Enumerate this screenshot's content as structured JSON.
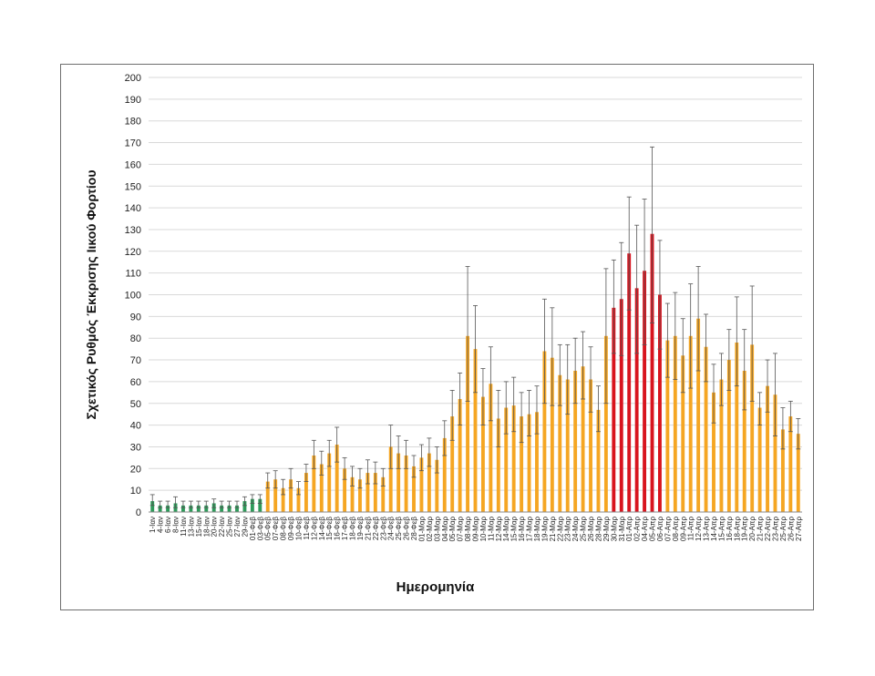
{
  "chart_data": {
    "type": "bar",
    "title": "",
    "xlabel": "Ημερομηνία",
    "ylabel": "Σχετικός Ρυθμός Έκκρισης Ιικού Φορτίου",
    "ylim": [
      0,
      200
    ],
    "yticks": [
      0,
      10,
      20,
      30,
      40,
      50,
      60,
      70,
      80,
      90,
      100,
      110,
      120,
      130,
      140,
      150,
      160,
      170,
      180,
      190,
      200
    ],
    "grid": true,
    "colors": {
      "green": "#2e9a5a",
      "orange": "#f5a623",
      "red": "#d8141e",
      "errorbar": "#555555",
      "grid": "#d9d9d9"
    },
    "x_tick_labels": [
      "1-Ιαν",
      "4-Ιαν",
      "6-Ιαν",
      "8-Ιαν",
      "11-Ιαν",
      "13-Ιαν",
      "15-Ιαν",
      "18-Ιαν",
      "20-Ιαν",
      "22-Ιαν",
      "25-Ιαν",
      "27-Ιαν",
      "29-Ιαν",
      "01-Φεβ",
      "03-Φεβ",
      "05-Φεβ",
      "07-Φεβ",
      "08-Φεβ",
      "09-Φεβ",
      "10-Φεβ",
      "11-Φεβ",
      "12-Φεβ",
      "14-Φεβ",
      "15-Φεβ",
      "16-Φεβ",
      "17-Φεβ",
      "18-Φεβ",
      "19-Φεβ",
      "21-Φεβ",
      "22-Φεβ",
      "23-Φεβ",
      "24-Φεβ",
      "25-Φεβ",
      "26-Φεβ",
      "28-Φεβ",
      "01-Μαρ",
      "02-Μαρ",
      "03-Μαρ",
      "04-Μαρ",
      "05-Μαρ",
      "07-Μαρ",
      "08-Μαρ",
      "09-Μαρ",
      "10-Μαρ",
      "11-Μαρ",
      "12-Μαρ",
      "14-Μαρ",
      "15-Μαρ",
      "16-Μαρ",
      "17-Μαρ",
      "18-Μαρ",
      "19-Μαρ",
      "21-Μαρ",
      "22-Μαρ",
      "23-Μαρ",
      "24-Μαρ",
      "25-Μαρ",
      "26-Μαρ",
      "28-Μαρ",
      "29-Μαρ",
      "30-Μαρ",
      "31-Μαρ",
      "01-Απρ",
      "02-Απρ",
      "04-Απρ",
      "05-Απρ",
      "06-Απρ",
      "07-Απρ",
      "08-Απρ",
      "09-Απρ",
      "11-Απρ",
      "12-Απρ",
      "13-Απρ",
      "14-Απρ",
      "15-Απρ",
      "16-Απρ",
      "18-Απρ",
      "19-Απρ",
      "20-Απρ",
      "21-Απρ",
      "22-Απρ",
      "23-Απρ",
      "25-Απρ",
      "26-Απρ",
      "27-Απρ"
    ],
    "bars": [
      {
        "v": 5,
        "lo": 3,
        "hi": 8,
        "c": "green"
      },
      {
        "v": 3,
        "lo": 2,
        "hi": 5,
        "c": "green"
      },
      {
        "v": 3,
        "lo": 2,
        "hi": 5,
        "c": "green"
      },
      {
        "v": 4,
        "lo": 2,
        "hi": 7,
        "c": "green"
      },
      {
        "v": 3,
        "lo": 2,
        "hi": 5,
        "c": "green"
      },
      {
        "v": 3,
        "lo": 2,
        "hi": 5,
        "c": "green"
      },
      {
        "v": 3,
        "lo": 2,
        "hi": 5,
        "c": "green"
      },
      {
        "v": 3,
        "lo": 2,
        "hi": 5,
        "c": "green"
      },
      {
        "v": 4,
        "lo": 2,
        "hi": 6,
        "c": "green"
      },
      {
        "v": 3,
        "lo": 2,
        "hi": 5,
        "c": "green"
      },
      {
        "v": 3,
        "lo": 2,
        "hi": 5,
        "c": "green"
      },
      {
        "v": 3,
        "lo": 2,
        "hi": 5,
        "c": "green"
      },
      {
        "v": 5,
        "lo": 3,
        "hi": 7,
        "c": "green"
      },
      {
        "v": 6,
        "lo": 4,
        "hi": 8,
        "c": "green"
      },
      {
        "v": 6,
        "lo": 4,
        "hi": 8,
        "c": "green"
      },
      {
        "v": 14,
        "lo": 11,
        "hi": 18,
        "c": "orange"
      },
      {
        "v": 15,
        "lo": 11,
        "hi": 19,
        "c": "orange"
      },
      {
        "v": 11,
        "lo": 8,
        "hi": 15,
        "c": "orange"
      },
      {
        "v": 15,
        "lo": 11,
        "hi": 20,
        "c": "orange"
      },
      {
        "v": 11,
        "lo": 8,
        "hi": 14,
        "c": "orange"
      },
      {
        "v": 18,
        "lo": 14,
        "hi": 22,
        "c": "orange"
      },
      {
        "v": 26,
        "lo": 20,
        "hi": 33,
        "c": "orange"
      },
      {
        "v": 22,
        "lo": 17,
        "hi": 28,
        "c": "orange"
      },
      {
        "v": 27,
        "lo": 21,
        "hi": 33,
        "c": "orange"
      },
      {
        "v": 31,
        "lo": 23,
        "hi": 39,
        "c": "orange"
      },
      {
        "v": 20,
        "lo": 15,
        "hi": 25,
        "c": "orange"
      },
      {
        "v": 16,
        "lo": 12,
        "hi": 21,
        "c": "orange"
      },
      {
        "v": 15,
        "lo": 11,
        "hi": 20,
        "c": "orange"
      },
      {
        "v": 18,
        "lo": 13,
        "hi": 24,
        "c": "orange"
      },
      {
        "v": 18,
        "lo": 13,
        "hi": 23,
        "c": "orange"
      },
      {
        "v": 16,
        "lo": 12,
        "hi": 20,
        "c": "orange"
      },
      {
        "v": 30,
        "lo": 20,
        "hi": 40,
        "c": "orange"
      },
      {
        "v": 27,
        "lo": 20,
        "hi": 35,
        "c": "orange"
      },
      {
        "v": 26,
        "lo": 20,
        "hi": 33,
        "c": "orange"
      },
      {
        "v": 21,
        "lo": 16,
        "hi": 26,
        "c": "orange"
      },
      {
        "v": 25,
        "lo": 19,
        "hi": 31,
        "c": "orange"
      },
      {
        "v": 27,
        "lo": 21,
        "hi": 34,
        "c": "orange"
      },
      {
        "v": 24,
        "lo": 18,
        "hi": 30,
        "c": "orange"
      },
      {
        "v": 34,
        "lo": 26,
        "hi": 42,
        "c": "orange"
      },
      {
        "v": 44,
        "lo": 33,
        "hi": 56,
        "c": "orange"
      },
      {
        "v": 52,
        "lo": 40,
        "hi": 64,
        "c": "orange"
      },
      {
        "v": 81,
        "lo": 51,
        "hi": 113,
        "c": "orange"
      },
      {
        "v": 75,
        "lo": 55,
        "hi": 95,
        "c": "orange"
      },
      {
        "v": 53,
        "lo": 40,
        "hi": 66,
        "c": "orange"
      },
      {
        "v": 59,
        "lo": 42,
        "hi": 76,
        "c": "orange"
      },
      {
        "v": 43,
        "lo": 30,
        "hi": 56,
        "c": "orange"
      },
      {
        "v": 48,
        "lo": 36,
        "hi": 60,
        "c": "orange"
      },
      {
        "v": 49,
        "lo": 37,
        "hi": 62,
        "c": "orange"
      },
      {
        "v": 44,
        "lo": 32,
        "hi": 55,
        "c": "orange"
      },
      {
        "v": 45,
        "lo": 35,
        "hi": 56,
        "c": "orange"
      },
      {
        "v": 46,
        "lo": 36,
        "hi": 58,
        "c": "orange"
      },
      {
        "v": 74,
        "lo": 50,
        "hi": 98,
        "c": "orange"
      },
      {
        "v": 71,
        "lo": 49,
        "hi": 94,
        "c": "orange"
      },
      {
        "v": 63,
        "lo": 49,
        "hi": 77,
        "c": "orange"
      },
      {
        "v": 61,
        "lo": 45,
        "hi": 77,
        "c": "orange"
      },
      {
        "v": 65,
        "lo": 50,
        "hi": 80,
        "c": "orange"
      },
      {
        "v": 67,
        "lo": 52,
        "hi": 83,
        "c": "orange"
      },
      {
        "v": 61,
        "lo": 46,
        "hi": 76,
        "c": "orange"
      },
      {
        "v": 47,
        "lo": 37,
        "hi": 58,
        "c": "orange"
      },
      {
        "v": 81,
        "lo": 50,
        "hi": 112,
        "c": "orange"
      },
      {
        "v": 94,
        "lo": 73,
        "hi": 116,
        "c": "red"
      },
      {
        "v": 98,
        "lo": 72,
        "hi": 124,
        "c": "red"
      },
      {
        "v": 119,
        "lo": 93,
        "hi": 145,
        "c": "red"
      },
      {
        "v": 103,
        "lo": 73,
        "hi": 132,
        "c": "red"
      },
      {
        "v": 111,
        "lo": 77,
        "hi": 144,
        "c": "red"
      },
      {
        "v": 128,
        "lo": 87,
        "hi": 168,
        "c": "red"
      },
      {
        "v": 100,
        "lo": 75,
        "hi": 125,
        "c": "red"
      },
      {
        "v": 79,
        "lo": 62,
        "hi": 96,
        "c": "orange"
      },
      {
        "v": 81,
        "lo": 61,
        "hi": 101,
        "c": "orange"
      },
      {
        "v": 72,
        "lo": 55,
        "hi": 89,
        "c": "orange"
      },
      {
        "v": 81,
        "lo": 57,
        "hi": 105,
        "c": "orange"
      },
      {
        "v": 89,
        "lo": 65,
        "hi": 113,
        "c": "orange"
      },
      {
        "v": 76,
        "lo": 60,
        "hi": 91,
        "c": "orange"
      },
      {
        "v": 55,
        "lo": 41,
        "hi": 68,
        "c": "orange"
      },
      {
        "v": 61,
        "lo": 49,
        "hi": 73,
        "c": "orange"
      },
      {
        "v": 70,
        "lo": 56,
        "hi": 84,
        "c": "orange"
      },
      {
        "v": 78,
        "lo": 58,
        "hi": 99,
        "c": "orange"
      },
      {
        "v": 65,
        "lo": 47,
        "hi": 84,
        "c": "orange"
      },
      {
        "v": 77,
        "lo": 51,
        "hi": 104,
        "c": "orange"
      },
      {
        "v": 48,
        "lo": 40,
        "hi": 55,
        "c": "orange"
      },
      {
        "v": 58,
        "lo": 46,
        "hi": 70,
        "c": "orange"
      },
      {
        "v": 54,
        "lo": 35,
        "hi": 73,
        "c": "orange"
      },
      {
        "v": 38,
        "lo": 29,
        "hi": 48,
        "c": "orange"
      },
      {
        "v": 44,
        "lo": 37,
        "hi": 51,
        "c": "orange"
      },
      {
        "v": 36,
        "lo": 29,
        "hi": 43,
        "c": "orange"
      }
    ]
  }
}
